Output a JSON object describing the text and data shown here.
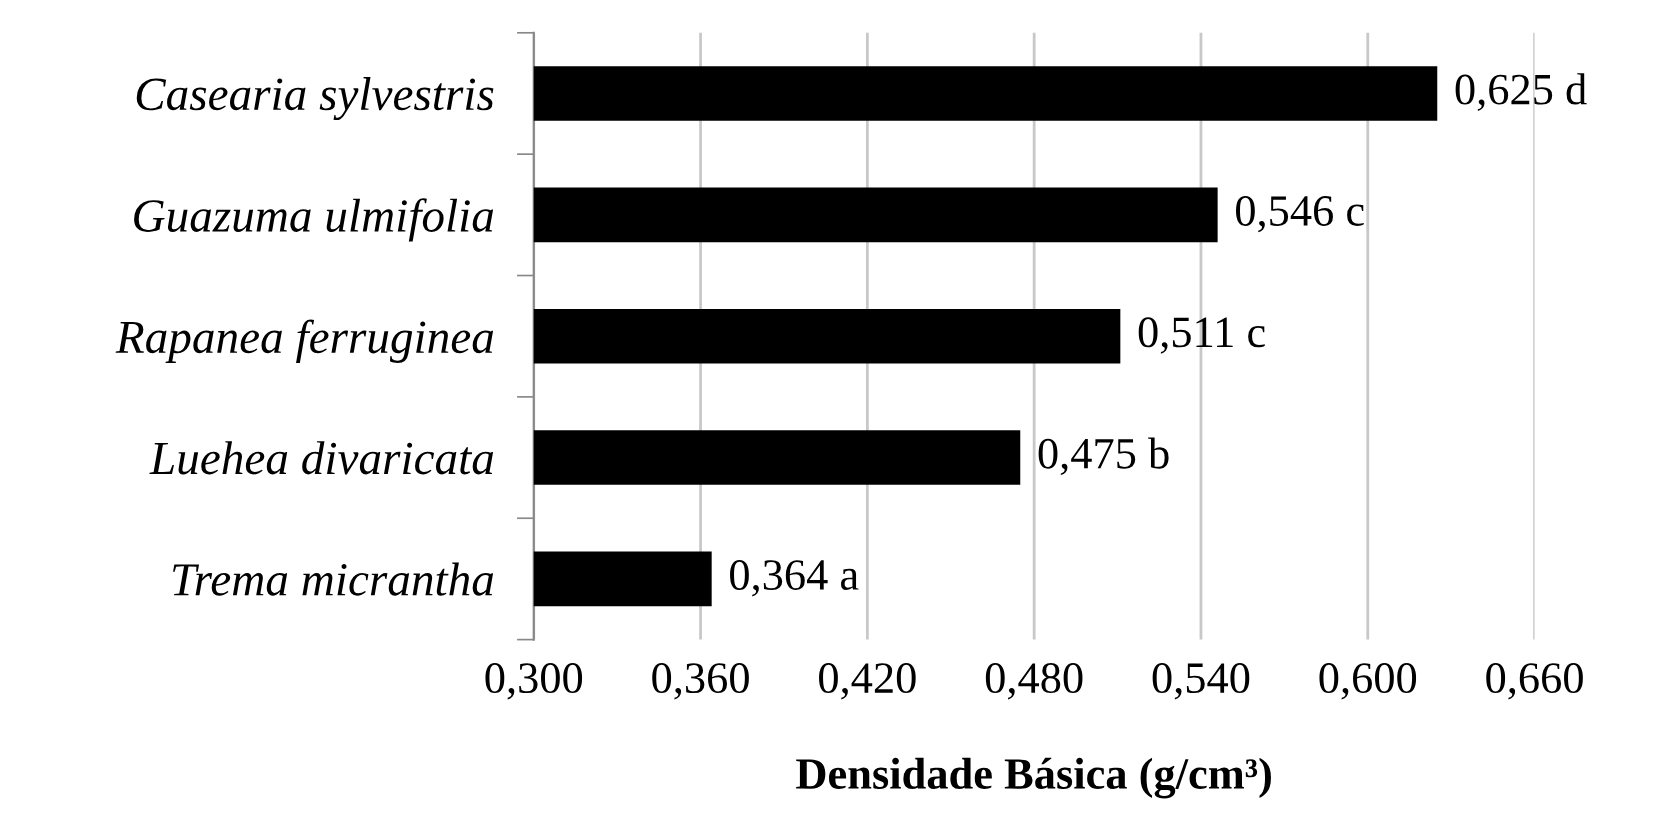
{
  "chart_data": {
    "type": "bar",
    "orientation": "horizontal",
    "xlabel": "Densidade Básica (g/cm³)",
    "categories": [
      "Casearia sylvestris",
      "Guazuma ulmifolia",
      "Rapanea ferruginea",
      "Luehea divaricata",
      "Trema micrantha"
    ],
    "values": [
      0.625,
      0.546,
      0.511,
      0.475,
      0.364
    ],
    "value_labels": [
      "0,625 d",
      "0,546 c",
      "0,511 c",
      "0,475 b",
      "0,364 a"
    ],
    "color": "#000000",
    "xlim": [
      0.3,
      0.66
    ],
    "xticks": [
      {
        "value": 0.3,
        "label": "0,300"
      },
      {
        "value": 0.36,
        "label": "0,360"
      },
      {
        "value": 0.42,
        "label": "0,420"
      },
      {
        "value": 0.48,
        "label": "0,480"
      },
      {
        "value": 0.54,
        "label": "0,540"
      },
      {
        "value": 0.6,
        "label": "0,600"
      },
      {
        "value": 0.66,
        "label": "0,660"
      }
    ],
    "grid": "x"
  }
}
